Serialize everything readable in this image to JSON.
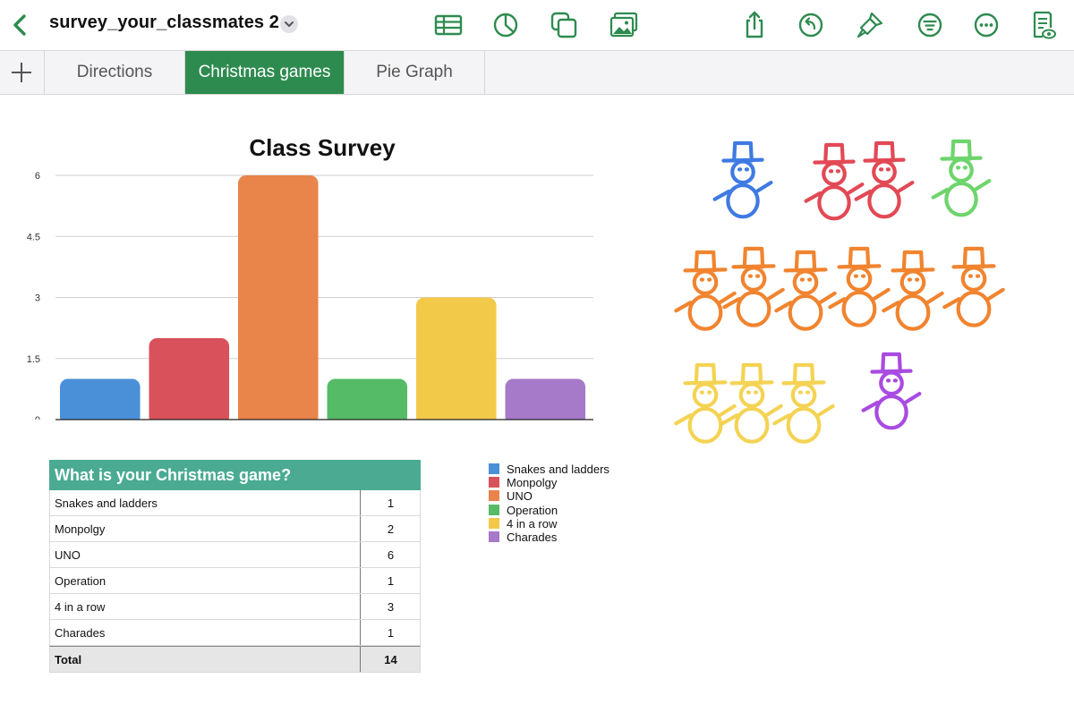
{
  "document": {
    "title": "survey_your_classmates 2"
  },
  "toolbar": {
    "accent_color": "#2e8b4f",
    "icons": [
      "back-chevron-icon",
      "table-icon",
      "chart-icon",
      "shapes-icon",
      "media-icon",
      "share-icon",
      "undo-icon",
      "format-brush-icon",
      "organize-icon",
      "more-icon",
      "view-options-icon"
    ]
  },
  "tabs": [
    {
      "label": "Directions",
      "active": false
    },
    {
      "label": "Christmas games",
      "active": true
    },
    {
      "label": "Pie Graph",
      "active": false
    }
  ],
  "chart_data": {
    "type": "bar",
    "title": "Class Survey",
    "categories": [
      "Snakes and ladders",
      "Monpolgy",
      "UNO",
      "Operation",
      "4 in a row",
      "Charades"
    ],
    "values": [
      1,
      2,
      6,
      1,
      3,
      1
    ],
    "colors": [
      "#4a90d9",
      "#d9515a",
      "#e9844a",
      "#55bb66",
      "#f3c94a",
      "#a679c9"
    ],
    "ylim": [
      0,
      6
    ],
    "yticks": [
      "0",
      "1.5",
      "3",
      "4.5",
      "6"
    ],
    "xlabel": "",
    "ylabel": "",
    "grid": true,
    "legend": "bottom-right"
  },
  "table": {
    "header": "What is your Christmas game?",
    "rows": [
      {
        "label": "Snakes and ladders",
        "value": "1"
      },
      {
        "label": "Monpolgy",
        "value": "2"
      },
      {
        "label": "UNO",
        "value": "6"
      },
      {
        "label": "Operation",
        "value": "1"
      },
      {
        "label": "4 in a row",
        "value": "3"
      },
      {
        "label": "Charades",
        "value": "1"
      }
    ],
    "total": {
      "label": "Total",
      "value": "14"
    }
  },
  "drawing": {
    "subject": "snowman doodles",
    "groups": [
      {
        "color": "#2f6fe0",
        "count": 1
      },
      {
        "color": "#e03a47",
        "count": 2
      },
      {
        "color": "#62d160",
        "count": 1
      },
      {
        "color": "#f07a1e",
        "count": 6
      },
      {
        "color": "#f4d046",
        "count": 3
      },
      {
        "color": "#a23ce0",
        "count": 1
      }
    ]
  }
}
